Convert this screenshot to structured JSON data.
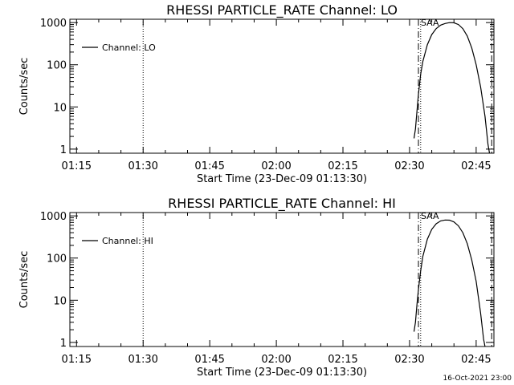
{
  "footer_stamp": "16-Oct-2021 23:00",
  "chart_data": [
    {
      "type": "line",
      "title": "RHESSI PARTICLE_RATE Channel: LO",
      "xlabel": "Start Time (23-Dec-09 01:13:30)",
      "ylabel": "Counts/sec",
      "yscale": "log",
      "xlim": [
        "01:13:30",
        "02:49:00"
      ],
      "ylim": [
        0.8,
        1200
      ],
      "x_ticks": [
        "01:15",
        "01:30",
        "01:45",
        "02:00",
        "02:15",
        "02:30",
        "02:45"
      ],
      "y_ticks": [
        "1",
        "10",
        "100",
        "1000"
      ],
      "legend": {
        "position": "top-left",
        "entries": [
          "Channel: LO"
        ]
      },
      "markers": [
        {
          "style": "dotted",
          "time": "01:30:00"
        },
        {
          "style": "dashdot",
          "time": "02:32:00"
        },
        {
          "style": "dotted",
          "time": "02:32:30"
        },
        {
          "style": "dashdot",
          "time": "02:48:30"
        }
      ],
      "marker_labels": [
        {
          "text": "SAA",
          "time": "02:32:00"
        }
      ],
      "series": [
        {
          "name": "Channel: LO",
          "points": [
            [
              "02:31:00",
              1.8
            ],
            [
              "02:31:20",
              3
            ],
            [
              "02:31:40",
              8
            ],
            [
              "02:32:00",
              20
            ],
            [
              "02:32:30",
              60
            ],
            [
              "02:33:00",
              120
            ],
            [
              "02:34:00",
              300
            ],
            [
              "02:35:00",
              520
            ],
            [
              "02:36:00",
              720
            ],
            [
              "02:37:00",
              870
            ],
            [
              "02:38:00",
              950
            ],
            [
              "02:39:00",
              1000
            ],
            [
              "02:40:00",
              990
            ],
            [
              "02:41:00",
              900
            ],
            [
              "02:42:00",
              720
            ],
            [
              "02:43:00",
              480
            ],
            [
              "02:44:00",
              250
            ],
            [
              "02:45:00",
              100
            ],
            [
              "02:46:00",
              30
            ],
            [
              "02:47:00",
              6
            ],
            [
              "02:47:40",
              1.3
            ],
            [
              "02:48:00",
              0.8
            ]
          ]
        }
      ]
    },
    {
      "type": "line",
      "title": "RHESSI PARTICLE_RATE Channel: HI",
      "xlabel": "Start Time (23-Dec-09 01:13:30)",
      "ylabel": "Counts/sec",
      "yscale": "log",
      "xlim": [
        "01:13:30",
        "02:49:00"
      ],
      "ylim": [
        0.8,
        1200
      ],
      "x_ticks": [
        "01:15",
        "01:30",
        "01:45",
        "02:00",
        "02:15",
        "02:30",
        "02:45"
      ],
      "y_ticks": [
        "1",
        "10",
        "100",
        "1000"
      ],
      "legend": {
        "position": "top-left",
        "entries": [
          "Channel: HI"
        ]
      },
      "markers": [
        {
          "style": "dotted",
          "time": "01:30:00"
        },
        {
          "style": "dashdot",
          "time": "02:32:00"
        },
        {
          "style": "dotted",
          "time": "02:32:30"
        },
        {
          "style": "dashdot",
          "time": "02:48:30"
        }
      ],
      "marker_labels": [
        {
          "text": "SAA",
          "time": "02:32:00"
        }
      ],
      "series": [
        {
          "name": "Channel: HI",
          "points": [
            [
              "02:31:00",
              1.8
            ],
            [
              "02:31:20",
              3
            ],
            [
              "02:31:40",
              8
            ],
            [
              "02:32:00",
              18
            ],
            [
              "02:32:30",
              50
            ],
            [
              "02:33:00",
              110
            ],
            [
              "02:34:00",
              280
            ],
            [
              "02:35:00",
              480
            ],
            [
              "02:36:00",
              650
            ],
            [
              "02:37:00",
              760
            ],
            [
              "02:38:00",
              800
            ],
            [
              "02:39:00",
              790
            ],
            [
              "02:40:00",
              720
            ],
            [
              "02:41:00",
              580
            ],
            [
              "02:42:00",
              400
            ],
            [
              "02:43:00",
              220
            ],
            [
              "02:44:00",
              90
            ],
            [
              "02:45:00",
              28
            ],
            [
              "02:46:00",
              5
            ],
            [
              "02:46:40",
              1.2
            ],
            [
              "02:47:00",
              0.8
            ]
          ]
        }
      ]
    }
  ]
}
